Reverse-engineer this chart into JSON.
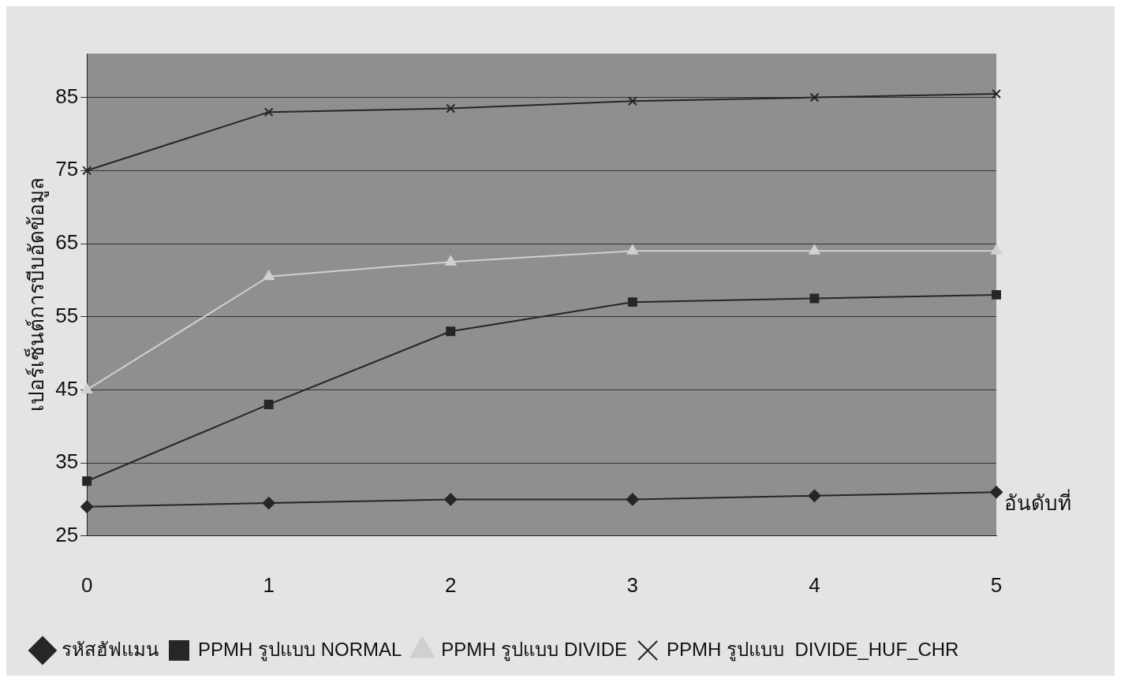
{
  "chart_data": {
    "type": "line",
    "ylabel": "เปอร์เซ็นต์การบีบอัดข้อมูล",
    "xlabel": "อันดับที่",
    "categories": [
      "0",
      "1",
      "2",
      "3",
      "4",
      "5"
    ],
    "series": [
      {
        "name": "รหัสฮัฟแมน",
        "color": "#262626",
        "marker": "diamond",
        "values": [
          29,
          29.5,
          30,
          30,
          30.5,
          31
        ]
      },
      {
        "name": "PPMH รูปแบบ NORMAL",
        "color": "#262626",
        "marker": "square",
        "values": [
          32.5,
          43,
          53,
          57,
          57.5,
          58
        ]
      },
      {
        "name": "PPMH รูปแบบ DIVIDE",
        "color": "#d0d0d0",
        "marker": "triangle",
        "values": [
          45,
          60.5,
          62.5,
          64,
          64,
          64
        ]
      },
      {
        "name": "PPMH รูปแบบ  DIVIDE_HUF_CHR",
        "color": "#262626",
        "marker": "cross",
        "values": [
          75,
          83,
          83.5,
          84.5,
          85,
          85.5
        ]
      }
    ],
    "ylim": [
      25,
      91
    ],
    "yticks": [
      25,
      35,
      45,
      55,
      65,
      75,
      85
    ],
    "grid": "y",
    "legend": "bottom"
  }
}
